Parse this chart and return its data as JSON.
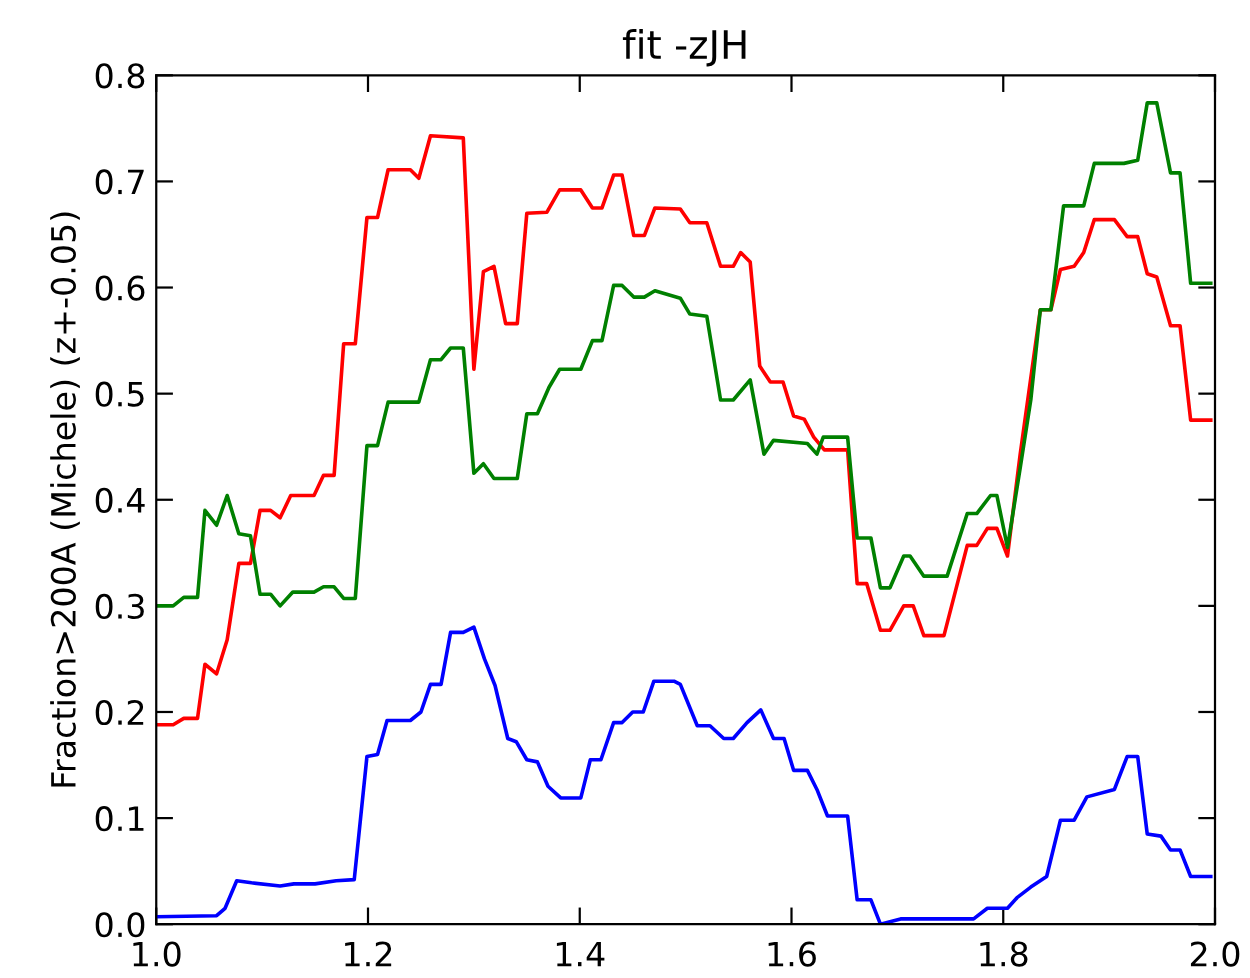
{
  "chart_data": {
    "type": "line",
    "title": "fit -zJH",
    "ylabel": "Fraction>200A (Michele) (z+-0.05)",
    "xlim": [
      1.0,
      2.0
    ],
    "ylim": [
      0.0,
      0.8
    ],
    "xticks": [
      {
        "value": 1.0,
        "label": "1.0"
      },
      {
        "value": 1.2,
        "label": "1.2"
      },
      {
        "value": 1.4,
        "label": "1.4"
      },
      {
        "value": 1.6,
        "label": "1.6"
      },
      {
        "value": 1.8,
        "label": "1.8"
      },
      {
        "value": 2.0,
        "label": "2.0"
      }
    ],
    "yticks": [
      {
        "value": 0.0,
        "label": "0.0"
      },
      {
        "value": 0.1,
        "label": "0.1"
      },
      {
        "value": 0.2,
        "label": "0.2"
      },
      {
        "value": 0.3,
        "label": "0.3"
      },
      {
        "value": 0.4,
        "label": "0.4"
      },
      {
        "value": 0.5,
        "label": "0.5"
      },
      {
        "value": 0.6,
        "label": "0.6"
      },
      {
        "value": 0.7,
        "label": "0.7"
      },
      {
        "value": 0.8,
        "label": "0.8"
      }
    ],
    "grid": false,
    "legend": false,
    "marker": "none",
    "line_style": "solid",
    "series": [
      {
        "color": "#ff0000",
        "x": [
          1.0,
          1.016,
          1.026,
          1.039,
          1.046,
          1.057,
          1.067,
          1.078,
          1.089,
          1.098,
          1.108,
          1.117,
          1.127,
          1.149,
          1.158,
          1.168,
          1.177,
          1.188,
          1.199,
          1.209,
          1.219,
          1.24,
          1.248,
          1.259,
          1.29,
          1.3,
          1.309,
          1.319,
          1.33,
          1.341,
          1.35,
          1.369,
          1.381,
          1.401,
          1.412,
          1.421,
          1.432,
          1.44,
          1.451,
          1.461,
          1.471,
          1.495,
          1.504,
          1.52,
          1.533,
          1.545,
          1.552,
          1.561,
          1.57,
          1.58,
          1.592,
          1.602,
          1.612,
          1.621,
          1.631,
          1.653,
          1.662,
          1.671,
          1.684,
          1.693,
          1.706,
          1.715,
          1.725,
          1.744,
          1.766,
          1.775,
          1.785,
          1.794,
          1.804,
          1.816,
          1.835,
          1.845,
          1.854,
          1.867,
          1.876,
          1.886,
          1.905,
          1.917,
          1.927,
          1.936,
          1.945,
          1.958,
          1.967,
          1.977,
          1.996
        ],
        "values": [
          0.188,
          0.188,
          0.194,
          0.194,
          0.245,
          0.236,
          0.268,
          0.34,
          0.34,
          0.39,
          0.39,
          0.383,
          0.404,
          0.404,
          0.423,
          0.423,
          0.547,
          0.547,
          0.666,
          0.666,
          0.711,
          0.711,
          0.703,
          0.743,
          0.741,
          0.523,
          0.615,
          0.62,
          0.566,
          0.566,
          0.67,
          0.671,
          0.692,
          0.692,
          0.675,
          0.675,
          0.706,
          0.706,
          0.649,
          0.649,
          0.675,
          0.674,
          0.661,
          0.661,
          0.62,
          0.62,
          0.633,
          0.624,
          0.526,
          0.511,
          0.511,
          0.479,
          0.476,
          0.459,
          0.447,
          0.447,
          0.321,
          0.321,
          0.277,
          0.277,
          0.3,
          0.3,
          0.272,
          0.272,
          0.357,
          0.357,
          0.373,
          0.373,
          0.347,
          0.443,
          0.579,
          0.579,
          0.617,
          0.62,
          0.633,
          0.664,
          0.664,
          0.648,
          0.648,
          0.613,
          0.61,
          0.564,
          0.564,
          0.475,
          0.475
        ]
      },
      {
        "color": "#008000",
        "x": [
          1.0,
          1.016,
          1.026,
          1.039,
          1.046,
          1.057,
          1.067,
          1.078,
          1.089,
          1.098,
          1.108,
          1.117,
          1.129,
          1.149,
          1.158,
          1.168,
          1.177,
          1.188,
          1.199,
          1.209,
          1.219,
          1.248,
          1.259,
          1.269,
          1.278,
          1.29,
          1.3,
          1.309,
          1.319,
          1.341,
          1.35,
          1.36,
          1.371,
          1.381,
          1.401,
          1.412,
          1.421,
          1.432,
          1.44,
          1.451,
          1.461,
          1.471,
          1.495,
          1.504,
          1.52,
          1.533,
          1.545,
          1.561,
          1.574,
          1.583,
          1.615,
          1.624,
          1.63,
          1.653,
          1.662,
          1.675,
          1.684,
          1.693,
          1.706,
          1.712,
          1.725,
          1.747,
          1.766,
          1.775,
          1.788,
          1.794,
          1.804,
          1.816,
          1.826,
          1.835,
          1.845,
          1.857,
          1.876,
          1.886,
          1.914,
          1.927,
          1.936,
          1.945,
          1.958,
          1.967,
          1.977,
          1.996
        ],
        "values": [
          0.3,
          0.3,
          0.308,
          0.308,
          0.39,
          0.376,
          0.404,
          0.368,
          0.366,
          0.311,
          0.311,
          0.3,
          0.313,
          0.313,
          0.318,
          0.318,
          0.307,
          0.307,
          0.451,
          0.451,
          0.492,
          0.492,
          0.532,
          0.532,
          0.543,
          0.543,
          0.425,
          0.434,
          0.42,
          0.42,
          0.481,
          0.481,
          0.506,
          0.523,
          0.523,
          0.55,
          0.55,
          0.602,
          0.602,
          0.591,
          0.591,
          0.597,
          0.59,
          0.575,
          0.573,
          0.494,
          0.494,
          0.513,
          0.443,
          0.456,
          0.453,
          0.443,
          0.459,
          0.459,
          0.364,
          0.364,
          0.317,
          0.317,
          0.347,
          0.347,
          0.328,
          0.328,
          0.387,
          0.387,
          0.404,
          0.404,
          0.355,
          0.43,
          0.494,
          0.579,
          0.579,
          0.677,
          0.677,
          0.717,
          0.717,
          0.72,
          0.774,
          0.774,
          0.708,
          0.708,
          0.604,
          0.604
        ]
      },
      {
        "color": "#0000ff",
        "x": [
          1.0,
          1.057,
          1.065,
          1.076,
          1.09,
          1.117,
          1.13,
          1.15,
          1.17,
          1.187,
          1.199,
          1.209,
          1.218,
          1.24,
          1.25,
          1.259,
          1.269,
          1.278,
          1.29,
          1.3,
          1.31,
          1.32,
          1.332,
          1.34,
          1.35,
          1.36,
          1.37,
          1.382,
          1.401,
          1.41,
          1.42,
          1.432,
          1.44,
          1.45,
          1.46,
          1.47,
          1.489,
          1.495,
          1.511,
          1.523,
          1.536,
          1.545,
          1.558,
          1.571,
          1.583,
          1.593,
          1.602,
          1.615,
          1.624,
          1.634,
          1.653,
          1.662,
          1.675,
          1.684,
          1.703,
          1.772,
          1.785,
          1.804,
          1.813,
          1.826,
          1.841,
          1.854,
          1.867,
          1.879,
          1.905,
          1.917,
          1.927,
          1.936,
          1.949,
          1.958,
          1.967,
          1.977,
          1.996
        ],
        "values": [
          0.007,
          0.008,
          0.015,
          0.041,
          0.039,
          0.036,
          0.038,
          0.038,
          0.041,
          0.042,
          0.158,
          0.16,
          0.192,
          0.192,
          0.2,
          0.226,
          0.226,
          0.275,
          0.275,
          0.28,
          0.25,
          0.225,
          0.175,
          0.172,
          0.155,
          0.153,
          0.13,
          0.119,
          0.119,
          0.155,
          0.155,
          0.19,
          0.19,
          0.2,
          0.2,
          0.229,
          0.229,
          0.226,
          0.187,
          0.187,
          0.175,
          0.175,
          0.19,
          0.202,
          0.175,
          0.175,
          0.145,
          0.145,
          0.127,
          0.102,
          0.102,
          0.023,
          0.023,
          0.0,
          0.005,
          0.005,
          0.015,
          0.015,
          0.025,
          0.035,
          0.045,
          0.098,
          0.098,
          0.12,
          0.127,
          0.158,
          0.158,
          0.085,
          0.083,
          0.07,
          0.07,
          0.045,
          0.045
        ]
      }
    ]
  }
}
